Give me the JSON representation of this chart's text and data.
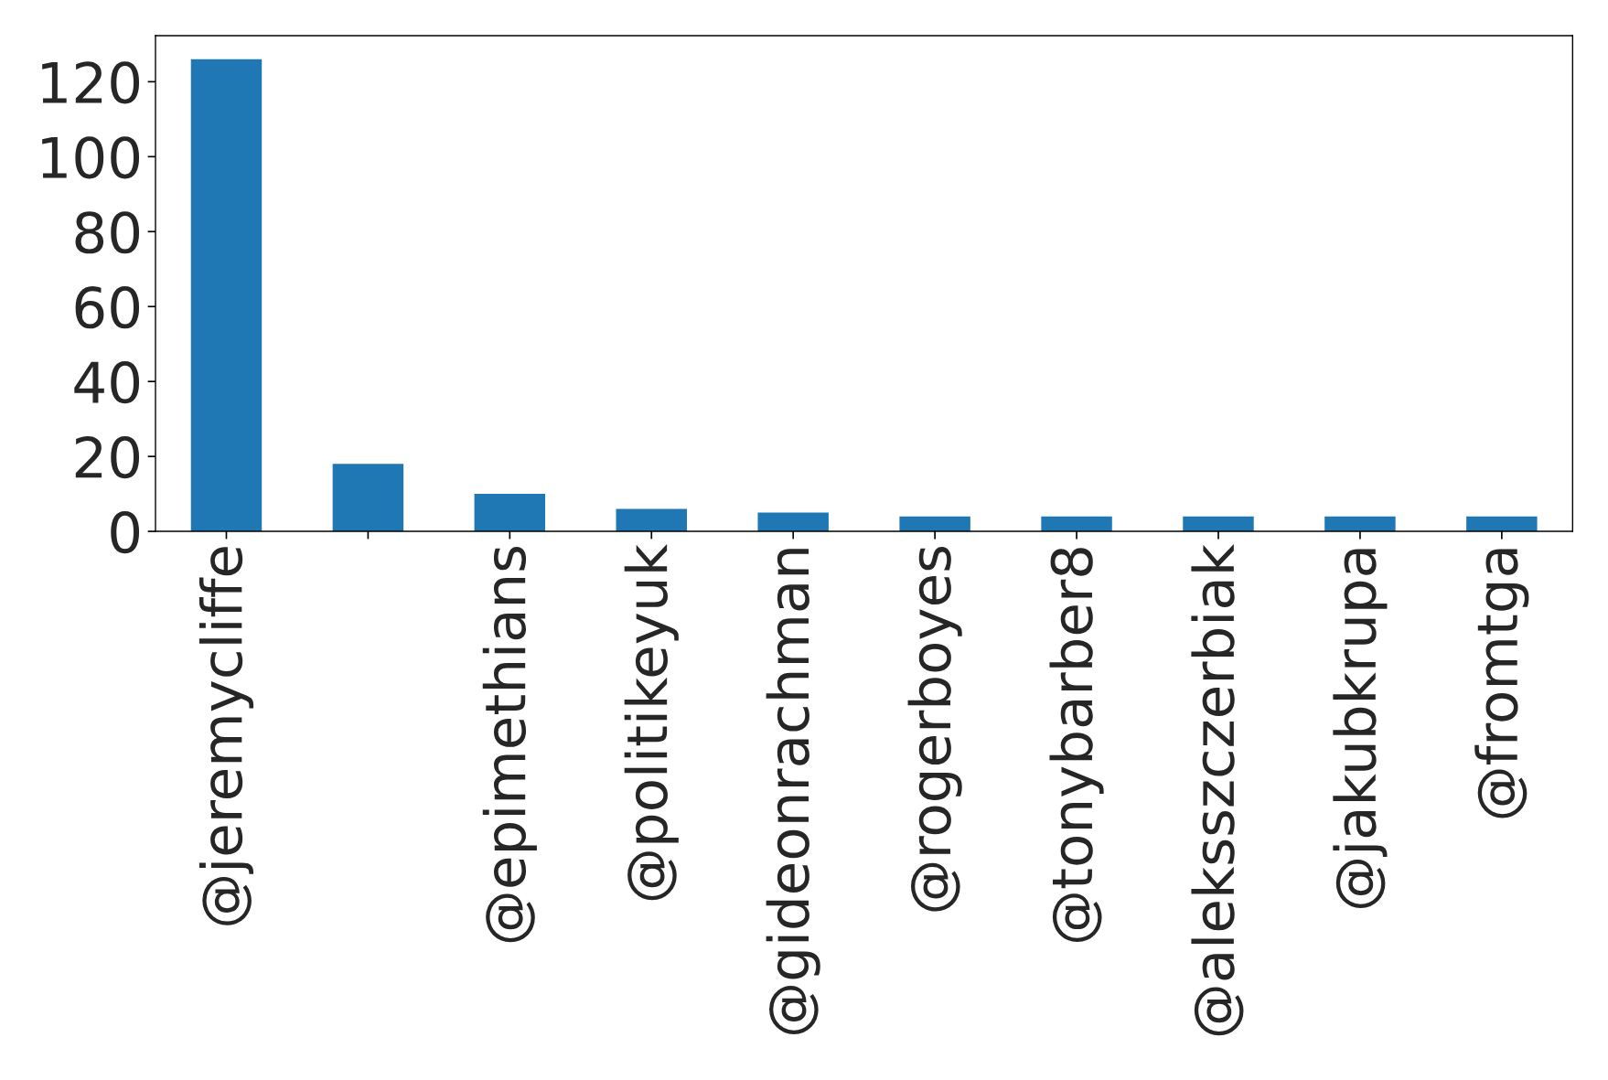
{
  "chart_data": {
    "type": "bar",
    "categories": [
      "@jeremycliffe",
      null,
      "@epimethians",
      "@politikeyuk",
      "@gideonrachman",
      "@rogerboyes",
      "@tonybarber8",
      "@aleksszczerbiak",
      "@jakubkrupa",
      "@fromtga"
    ],
    "values": [
      126,
      18,
      10,
      6,
      5,
      4,
      4,
      4,
      4,
      4
    ],
    "color": "#1f77b4",
    "ylim": [
      0,
      132.3
    ],
    "yticks": [
      0,
      20,
      40,
      60,
      80,
      100,
      120
    ],
    "grid": false,
    "legend": false
  }
}
